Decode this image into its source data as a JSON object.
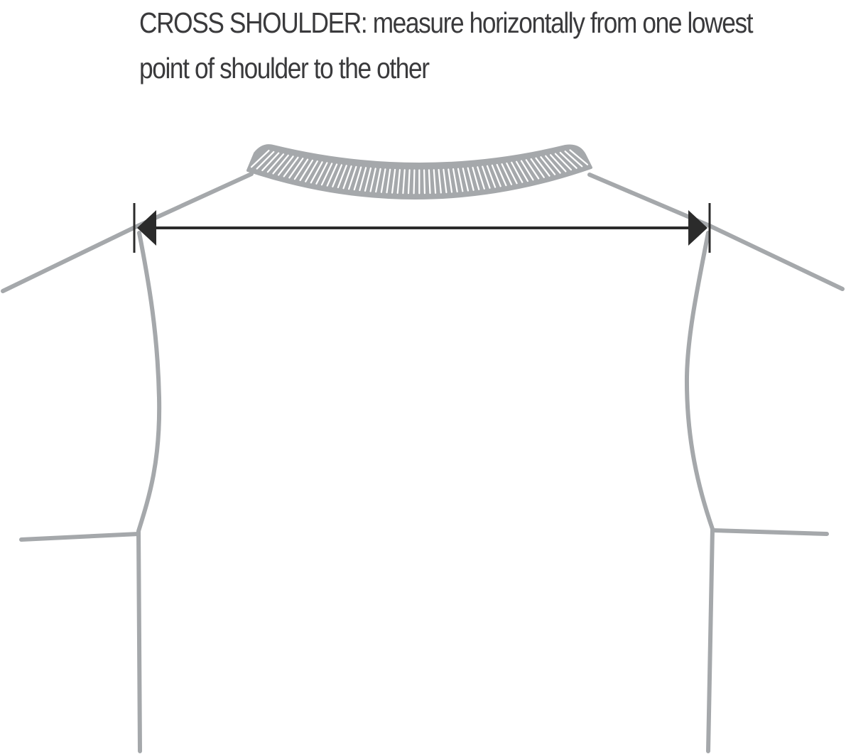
{
  "caption": {
    "line1": "CROSS SHOULDER:  measure horizontally from one lowest",
    "line2": "point of shoulder to the other"
  },
  "colors": {
    "garment_outline": "#a5a8ab",
    "measure_line": "#2b2b2b",
    "text": "#3a3a3c",
    "background": "#ffffff"
  },
  "icons": {
    "left_arrow": "arrowhead-left-icon",
    "right_arrow": "arrowhead-right-icon"
  }
}
